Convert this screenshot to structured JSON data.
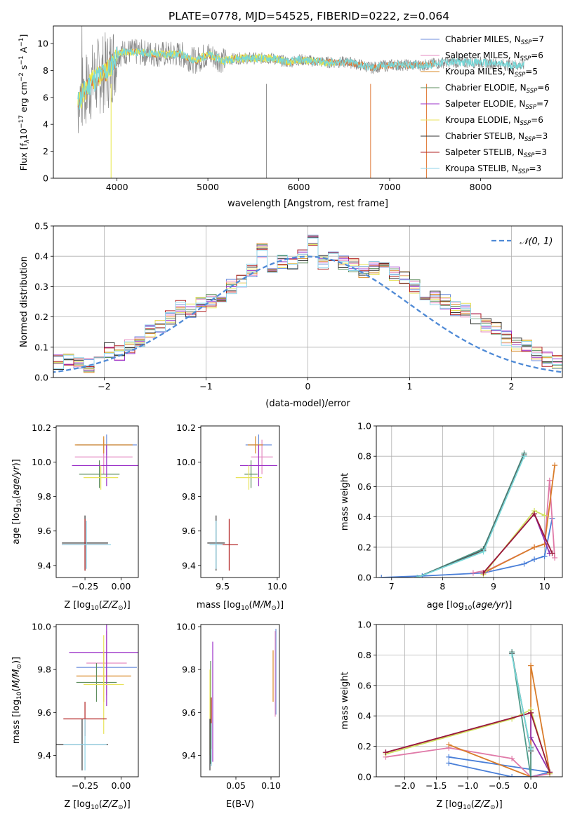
{
  "figure": {
    "title": "PLATE=0778, MJD=54525, FIBERID=0222, z=0.064"
  },
  "colors": {
    "series": [
      "#6c8edc",
      "#e58ac0",
      "#d98b2a",
      "#5e8e5e",
      "#9b30c8",
      "#e8e35a",
      "#333333",
      "#b22222",
      "#8fd3e8"
    ],
    "spectrum_gray": "#888888",
    "spectrum_cyan": "#78d8d8",
    "spectrum_yellow": "#e8e84a",
    "spectrum_orange": "#e07b39",
    "normal_curve": "#4f8ad6",
    "mw_blue": "#4a7fd8",
    "mw_pink": "#e07aa8",
    "mw_orange": "#d97c2a",
    "mw_teal": "#4f9a8a",
    "mw_purple": "#9130b0",
    "mw_yellow": "#d0e060"
  },
  "chart_data": [
    {
      "id": "spectrum",
      "type": "line",
      "xlabel": "wavelength [Angstrom, rest frame]",
      "ylabel": "Flux [f",
      "xlim": [
        3300,
        8900
      ],
      "ylim": [
        0,
        11.3
      ],
      "xticks": [
        4000,
        5000,
        6000,
        7000,
        8000
      ],
      "yticks": [
        0,
        2,
        4,
        6,
        8,
        10
      ],
      "legend": [
        {
          "label": "Chabrier MILES, N",
          "n": "7"
        },
        {
          "label": "Salpeter MILES, N",
          "n": "6"
        },
        {
          "label": "Kroupa MILES, N",
          "n": "5"
        },
        {
          "label": "Chabrier ELODIE, N",
          "n": "6"
        },
        {
          "label": "Salpeter ELODIE, N",
          "n": "7"
        },
        {
          "label": "Kroupa ELODIE, N",
          "n": "6"
        },
        {
          "label": "Chabrier STELIB, N",
          "n": "3"
        },
        {
          "label": "Salpeter STELIB, N",
          "n": "3"
        },
        {
          "label": "Kroupa STELIB, N",
          "n": "3"
        }
      ],
      "legend_sub": "SSP",
      "continuum": [
        [
          3570,
          5.6
        ],
        [
          3620,
          6.2
        ],
        [
          3700,
          7.0
        ],
        [
          3800,
          7.6
        ],
        [
          3900,
          8.0
        ],
        [
          3960,
          8.6
        ],
        [
          4000,
          9.2
        ],
        [
          4100,
          9.4
        ],
        [
          4300,
          9.3
        ],
        [
          4500,
          9.2
        ],
        [
          4700,
          9.2
        ],
        [
          4861,
          8.7
        ],
        [
          5000,
          9.2
        ],
        [
          5175,
          8.7
        ],
        [
          5300,
          8.9
        ],
        [
          5500,
          8.9
        ],
        [
          5700,
          8.9
        ],
        [
          5890,
          8.6
        ],
        [
          6000,
          8.8
        ],
        [
          6300,
          8.6
        ],
        [
          6563,
          8.6
        ],
        [
          6800,
          8.2
        ],
        [
          7000,
          8.4
        ],
        [
          7200,
          8.4
        ],
        [
          7400,
          8.4
        ],
        [
          7600,
          8.6
        ],
        [
          7800,
          8.6
        ],
        [
          8000,
          8.6
        ],
        [
          8300,
          8.4
        ],
        [
          8500,
          8.4
        ]
      ]
    },
    {
      "id": "residuals",
      "type": "line",
      "xlabel": "(data-model)/error",
      "ylabel": "Normed distribution",
      "xlim": [
        -2.5,
        2.5
      ],
      "ylim": [
        0,
        0.5
      ],
      "xticks": [
        -2,
        -1,
        0,
        1,
        2
      ],
      "yticks": [
        0.0,
        0.1,
        0.2,
        0.3,
        0.4,
        0.5
      ],
      "legend": "𝒩(0, 1)",
      "bin_width": 0.1,
      "hist": [
        0.03,
        0.02,
        0.05,
        0.06,
        0.05,
        0.04,
        0.08,
        0.09,
        0.08,
        0.1,
        0.12,
        0.15,
        0.17,
        0.2,
        0.23,
        0.22,
        0.24,
        0.25,
        0.26,
        0.3,
        0.32,
        0.35,
        0.42,
        0.36,
        0.38,
        0.38,
        0.4,
        0.45,
        0.38,
        0.4,
        0.38,
        0.37,
        0.35,
        0.36,
        0.36,
        0.34,
        0.33,
        0.3,
        0.28,
        0.26,
        0.25,
        0.23,
        0.22,
        0.2,
        0.17,
        0.16,
        0.13,
        0.11,
        0.1,
        0.08,
        0.06,
        0.05,
        0.04,
        0.03
      ]
    },
    {
      "id": "z-age",
      "type": "scatter",
      "xlabel": "Z [log",
      "ylabel": "age  [log",
      "xlim": [
        -0.45,
        0.12
      ],
      "ylim": [
        9.33,
        10.21
      ],
      "xticks": [
        -0.25,
        0.0
      ],
      "xtick_labels": [
        "−0.25",
        "0.00"
      ],
      "yticks": [
        9.4,
        9.6,
        9.8,
        10.0,
        10.2
      ],
      "points": [
        {
          "x": -0.1,
          "y": 10.1,
          "xerr": 0.21,
          "yerr": 0.06
        },
        {
          "x": -0.12,
          "y": 10.03,
          "xerr": 0.2,
          "yerr": 0.1
        },
        {
          "x": -0.12,
          "y": 10.1,
          "xerr": 0.2,
          "yerr": 0.05
        },
        {
          "x": -0.15,
          "y": 9.93,
          "xerr": 0.14,
          "yerr": 0.08
        },
        {
          "x": -0.1,
          "y": 9.98,
          "xerr": 0.24,
          "yerr": 0.12
        },
        {
          "x": -0.14,
          "y": 9.91,
          "xerr": 0.12,
          "yerr": 0.07
        },
        {
          "x": -0.25,
          "y": 9.53,
          "xerr": 0.16,
          "yerr": 0.16
        },
        {
          "x": -0.25,
          "y": 9.52,
          "xerr": 0.16,
          "yerr": 0.15
        },
        {
          "x": -0.24,
          "y": 9.52,
          "xerr": 0.17,
          "yerr": 0.14
        }
      ]
    },
    {
      "id": "mass-age",
      "type": "scatter",
      "xlabel": "mass [log",
      "ylabel": "",
      "xlim": [
        9.3,
        10.02
      ],
      "ylim": [
        9.33,
        10.21
      ],
      "xticks": [
        9.5,
        10.0
      ],
      "yticks": [
        9.4,
        9.6,
        9.8,
        10.0,
        10.2
      ],
      "points": [
        {
          "x": 9.83,
          "y": 10.1,
          "xerr": 0.12,
          "yerr": 0.06
        },
        {
          "x": 9.86,
          "y": 10.03,
          "xerr": 0.1,
          "yerr": 0.1
        },
        {
          "x": 9.8,
          "y": 10.1,
          "xerr": 0.07,
          "yerr": 0.05
        },
        {
          "x": 9.76,
          "y": 9.93,
          "xerr": 0.06,
          "yerr": 0.08
        },
        {
          "x": 9.83,
          "y": 9.98,
          "xerr": 0.17,
          "yerr": 0.12
        },
        {
          "x": 9.74,
          "y": 9.91,
          "xerr": 0.12,
          "yerr": 0.07
        },
        {
          "x": 9.44,
          "y": 9.53,
          "xerr": 0.08,
          "yerr": 0.16
        },
        {
          "x": 9.56,
          "y": 9.52,
          "xerr": 0.08,
          "yerr": 0.15
        },
        {
          "x": 9.44,
          "y": 9.52,
          "xerr": 0.06,
          "yerr": 0.14
        }
      ]
    },
    {
      "id": "mw-age",
      "type": "line",
      "xlabel": "age  [log",
      "ylabel": "mass weight",
      "xlim": [
        6.7,
        10.35
      ],
      "ylim": [
        0,
        1.0
      ],
      "xticks": [
        7,
        8,
        9,
        10
      ],
      "yticks": [
        0.0,
        0.2,
        0.4,
        0.6,
        0.8,
        1.0
      ],
      "series": [
        {
          "values": [
            [
              6.8,
              0.0
            ],
            [
              7.6,
              0.01
            ],
            [
              8.8,
              0.03
            ],
            [
              9.6,
              0.09
            ],
            [
              9.8,
              0.12
            ],
            [
              10.0,
              0.14
            ],
            [
              10.15,
              0.39
            ]
          ]
        },
        {
          "values": [
            [
              8.6,
              0.03
            ],
            [
              8.9,
              0.05
            ],
            [
              9.8,
              0.2
            ],
            [
              10.0,
              0.22
            ],
            [
              10.1,
              0.64
            ],
            [
              10.2,
              0.13
            ]
          ]
        },
        {
          "values": [
            [
              8.8,
              0.03
            ],
            [
              9.8,
              0.2
            ],
            [
              10.0,
              0.22
            ],
            [
              10.2,
              0.74
            ]
          ]
        },
        {
          "values": [
            [
              7.5,
              0.0
            ],
            [
              8.8,
              0.19
            ],
            [
              9.6,
              0.82
            ]
          ]
        },
        {
          "values": [
            [
              8.8,
              0.03
            ],
            [
              9.8,
              0.42
            ],
            [
              10.1,
              0.16
            ]
          ]
        },
        {
          "values": [
            [
              8.8,
              0.02
            ],
            [
              9.8,
              0.44
            ],
            [
              10.0,
              0.41
            ]
          ]
        },
        {
          "values": [
            [
              7.5,
              0.0
            ],
            [
              8.8,
              0.18
            ],
            [
              9.6,
              0.81
            ]
          ]
        },
        {
          "values": [
            [
              8.8,
              0.03
            ],
            [
              9.8,
              0.42
            ],
            [
              10.15,
              0.16
            ]
          ]
        },
        {
          "values": [
            [
              7.5,
              0.0
            ],
            [
              8.8,
              0.17
            ],
            [
              9.6,
              0.8
            ]
          ]
        }
      ]
    },
    {
      "id": "z-mass",
      "type": "scatter",
      "xlabel": "Z [log",
      "ylabel": "mass [log",
      "xlim": [
        -0.45,
        0.12
      ],
      "ylim": [
        9.3,
        10.01
      ],
      "xticks": [
        -0.25,
        0.0
      ],
      "xtick_labels": [
        "−0.25",
        "0.00"
      ],
      "yticks": [
        9.4,
        9.6,
        9.8,
        10.0
      ],
      "points": [
        {
          "x": -0.1,
          "y": 9.81,
          "xerr": 0.21,
          "yerr": 0.07
        },
        {
          "x": -0.1,
          "y": 9.83,
          "xerr": 0.14,
          "yerr": 0.15
        },
        {
          "x": -0.12,
          "y": 9.77,
          "xerr": 0.19,
          "yerr": 0.12
        },
        {
          "x": -0.17,
          "y": 9.74,
          "xerr": 0.14,
          "yerr": 0.09
        },
        {
          "x": -0.1,
          "y": 9.88,
          "xerr": 0.26,
          "yerr": 0.25
        },
        {
          "x": -0.12,
          "y": 9.73,
          "xerr": 0.14,
          "yerr": 0.23
        },
        {
          "x": -0.27,
          "y": 9.45,
          "xerr": 0.18,
          "yerr": 0.12
        },
        {
          "x": -0.25,
          "y": 9.57,
          "xerr": 0.15,
          "yerr": 0.08
        },
        {
          "x": -0.25,
          "y": 9.45,
          "xerr": 0.15,
          "yerr": 0.12
        }
      ]
    },
    {
      "id": "ebv-mass",
      "type": "scatter",
      "xlabel": "E(B-V)",
      "ylabel": "",
      "xlim": [
        0.0,
        0.112
      ],
      "ylim": [
        9.3,
        10.01
      ],
      "xticks": [
        0.05,
        0.1
      ],
      "xtick_labels": [
        "0.05",
        "0.10"
      ],
      "yticks": [
        9.4,
        9.6,
        9.8,
        10.0
      ],
      "points": [
        {
          "x": 0.107,
          "y": 9.79,
          "xerr": 0.0,
          "yerr": 0.2
        },
        {
          "x": 0.106,
          "y": 9.78,
          "xerr": 0.0,
          "yerr": 0.2
        },
        {
          "x": 0.103,
          "y": 9.77,
          "xerr": 0.0,
          "yerr": 0.12
        },
        {
          "x": 0.014,
          "y": 9.6,
          "xerr": 0.0,
          "yerr": 0.24
        },
        {
          "x": 0.017,
          "y": 9.65,
          "xerr": 0.0,
          "yerr": 0.28
        },
        {
          "x": 0.013,
          "y": 9.6,
          "xerr": 0.0,
          "yerr": 0.2
        },
        {
          "x": 0.013,
          "y": 9.45,
          "xerr": 0.0,
          "yerr": 0.12
        },
        {
          "x": 0.015,
          "y": 9.55,
          "xerr": 0.0,
          "yerr": 0.12
        },
        {
          "x": 0.015,
          "y": 9.45,
          "xerr": 0.0,
          "yerr": 0.1
        }
      ]
    },
    {
      "id": "mw-z",
      "type": "line",
      "xlabel": "Z [log",
      "ylabel": "mass weight",
      "xlim": [
        -2.45,
        0.5
      ],
      "ylim": [
        0,
        1.0
      ],
      "xticks": [
        -2.0,
        -1.5,
        -1.0,
        -0.5,
        0.0
      ],
      "xtick_labels": [
        "−2.0",
        "−1.5",
        "−1.0",
        "−0.5",
        "0.0"
      ],
      "yticks": [
        0.0,
        0.2,
        0.4,
        0.6,
        0.8,
        1.0
      ],
      "series": [
        {
          "values": [
            [
              -1.3,
              0.09
            ],
            [
              -0.3,
              0.0
            ],
            [
              0.0,
              0.0
            ],
            [
              0.3,
              0.03
            ],
            [
              -1.3,
              0.13
            ]
          ]
        },
        {
          "values": [
            [
              -2.3,
              0.13
            ],
            [
              -1.3,
              0.19
            ],
            [
              -0.3,
              0.12
            ],
            [
              0.0,
              0.0
            ],
            [
              0.3,
              0.02
            ]
          ]
        },
        {
          "values": [
            [
              -1.3,
              0.21
            ],
            [
              0.0,
              0.0
            ],
            [
              0.0,
              0.73
            ],
            [
              0.3,
              0.03
            ]
          ]
        },
        {
          "values": [
            [
              -0.3,
              0.82
            ],
            [
              0.0,
              0.0
            ],
            [
              0.0,
              0.19
            ]
          ]
        },
        {
          "values": [
            [
              -2.3,
              0.16
            ],
            [
              0.0,
              0.42
            ],
            [
              0.0,
              0.26
            ],
            [
              0.3,
              0.03
            ]
          ]
        },
        {
          "values": [
            [
              -2.3,
              0.15
            ],
            [
              -0.3,
              0.38
            ],
            [
              0.0,
              0.44
            ],
            [
              0.3,
              0.02
            ]
          ]
        },
        {
          "values": [
            [
              -0.3,
              0.81
            ],
            [
              0.0,
              0.17
            ]
          ]
        },
        {
          "values": [
            [
              -2.3,
              0.16
            ],
            [
              0.0,
              0.42
            ],
            [
              0.3,
              0.03
            ]
          ]
        },
        {
          "values": [
            [
              -0.3,
              0.8
            ],
            [
              0.0,
              0.18
            ]
          ]
        }
      ]
    }
  ]
}
